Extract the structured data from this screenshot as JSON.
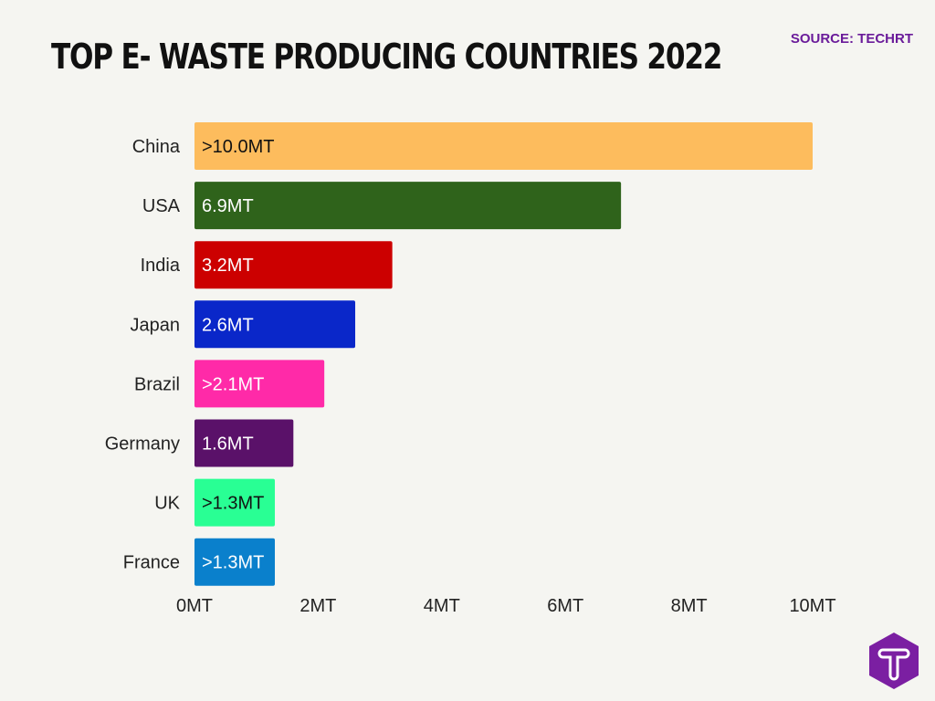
{
  "chart_data": {
    "type": "bar",
    "orientation": "horizontal",
    "title": "TOP E- WASTE PRODUCING COUNTRIES 2022",
    "source": "SOURCE: TECHRT",
    "categories": [
      "China",
      "USA",
      "India",
      "Japan",
      "Brazil",
      "Germany",
      "UK",
      "France"
    ],
    "values": [
      10.0,
      6.9,
      3.2,
      2.6,
      2.1,
      1.6,
      1.3,
      1.3
    ],
    "data_labels": [
      ">10.0MT",
      "6.9MT",
      "3.2MT",
      "2.6MT",
      ">2.1MT",
      "1.6MT",
      ">1.3MT",
      ">1.3MT"
    ],
    "colors": [
      "#fdbc5d",
      "#2f631b",
      "#cc0000",
      "#0a27c9",
      "#ff2aa8",
      "#5a1169",
      "#29ff94",
      "#0a80cc"
    ],
    "label_colors": [
      "#111111",
      "#ffffff",
      "#ffffff",
      "#ffffff",
      "#ffffff",
      "#ffffff",
      "#111111",
      "#ffffff"
    ],
    "xticks": [
      0,
      2,
      4,
      6,
      8,
      10
    ],
    "xtick_labels": [
      "0MT",
      "2MT",
      "4MT",
      "6MT",
      "8MT",
      "10MT"
    ],
    "xlim": [
      0,
      10
    ],
    "xlabel": "",
    "ylabel": "",
    "grid": false
  },
  "logo": {
    "letter": "T",
    "color": "#7b1fa2"
  }
}
